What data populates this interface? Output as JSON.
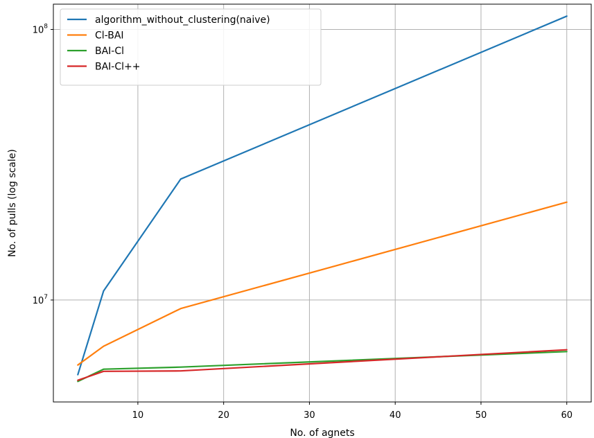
{
  "chart_data": {
    "type": "line",
    "title": "",
    "xlabel": "No. of agnets",
    "ylabel": "No. of pulls (log scale)",
    "yscale": "log",
    "xlim": [
      0.15,
      62.85
    ],
    "ylim": [
      4200000,
      124000000
    ],
    "grid": true,
    "legend_position": "top-left",
    "x": [
      3,
      6,
      15,
      60
    ],
    "xticks": [
      10,
      20,
      30,
      40,
      50,
      60
    ],
    "yticks": [
      {
        "value": 10000000,
        "base": "10",
        "exp": "7"
      },
      {
        "value": 100000000,
        "base": "10",
        "exp": "8"
      }
    ],
    "series": [
      {
        "name": "algorithm_without_clustering(naive)",
        "color": "#1f77b4",
        "values": [
          5300000,
          10800000,
          28000000,
          112000000
        ]
      },
      {
        "name": "Cl-BAI",
        "color": "#ff7f0e",
        "values": [
          5750000,
          6750000,
          9300000,
          23000000
        ]
      },
      {
        "name": "BAI-Cl",
        "color": "#2ca02c",
        "values": [
          5000000,
          5550000,
          5650000,
          6450000
        ]
      },
      {
        "name": "BAI-Cl++",
        "color": "#d62728",
        "values": [
          5050000,
          5450000,
          5470000,
          6550000
        ]
      }
    ]
  }
}
